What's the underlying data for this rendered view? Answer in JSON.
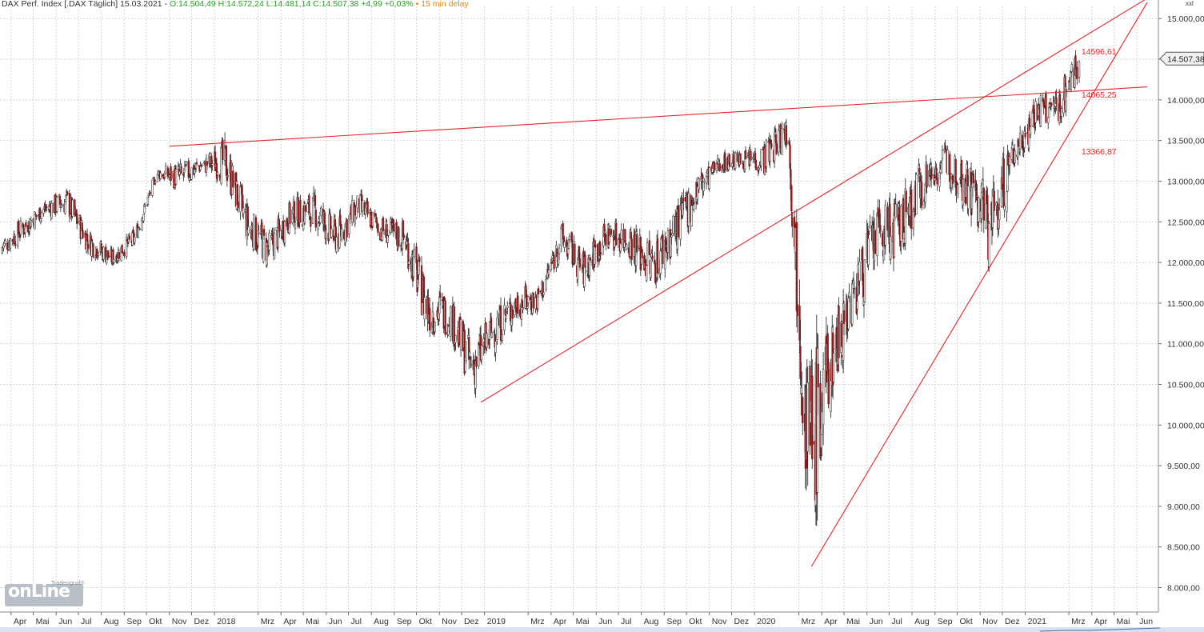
{
  "header": {
    "main": "DAX Perf. Index [.DAX Täglich] 15.03.2021 -",
    "ohlc": "O:14.504,49 H:14.572,24 L:14.481,14 C:14.507,38 +4,99 +0,03%",
    "delay": "• 15 min delay"
  },
  "logo": {
    "word": "onLine",
    "small": "Tradesignal®"
  },
  "colors": {
    "up_candle": "#ffffff",
    "down_candle": "#8b1a1a",
    "wick": "#222222",
    "trendline": "#e8262a",
    "grid": "#d4d4d4",
    "axis_text": "#333333",
    "annotation": "#e8262a",
    "last_price_box": "#f2f2f2"
  },
  "chart_data": {
    "type": "candlestick",
    "title": "DAX Perf. Index [.DAX Täglich]",
    "x": [
      "2017-03",
      "2017-04",
      "2017-05",
      "2017-06",
      "2017-07",
      "2017-08",
      "2017-09",
      "2017-10",
      "2017-11",
      "2017-12",
      "2018-01",
      "2018-02",
      "2018-03",
      "2018-04",
      "2018-05",
      "2018-06",
      "2018-07",
      "2018-08",
      "2018-09",
      "2018-10",
      "2018-11",
      "2018-12",
      "2019-01",
      "2019-02",
      "2019-03",
      "2019-04",
      "2019-05",
      "2019-06",
      "2019-07",
      "2019-08",
      "2019-09",
      "2019-10",
      "2019-11",
      "2019-12",
      "2020-01",
      "2020-02",
      "2020-03",
      "2020-04",
      "2020-05",
      "2020-06",
      "2020-07",
      "2020-08",
      "2020-09",
      "2020-10",
      "2020-11",
      "2020-12",
      "2021-01",
      "2021-02",
      "2021-03"
    ],
    "close": [
      12150,
      12400,
      12650,
      12750,
      12250,
      12050,
      12300,
      13100,
      13050,
      13200,
      13250,
      12450,
      12150,
      12600,
      12650,
      12300,
      12700,
      12400,
      12300,
      11450,
      11350,
      10700,
      11200,
      11500,
      11550,
      12300,
      11900,
      12350,
      12300,
      11950,
      12400,
      12900,
      13250,
      13250,
      13300,
      13650,
      9600,
      10850,
      11700,
      12350,
      12400,
      13000,
      13250,
      13000,
      12450,
      13300,
      13850,
      13900,
      14507.38
    ],
    "range_high": [
      12300,
      12600,
      12850,
      12950,
      12650,
      12250,
      12600,
      13200,
      13500,
      13200,
      13600,
      13200,
      12600,
      12750,
      13150,
      12950,
      12900,
      12750,
      12500,
      12450,
      11700,
      11400,
      11350,
      11650,
      11800,
      12500,
      12400,
      12450,
      12650,
      12400,
      12600,
      13000,
      13300,
      13400,
      13650,
      13800,
      12500,
      11200,
      11800,
      12900,
      13300,
      13300,
      13450,
      13200,
      13200,
      13800,
      14150,
      14200,
      14596.61
    ],
    "range_low": [
      11850,
      12100,
      12450,
      12350,
      12100,
      11850,
      12200,
      12950,
      12850,
      12800,
      12700,
      12300,
      11850,
      12100,
      12400,
      12150,
      12300,
      12200,
      11750,
      11200,
      10850,
      10280,
      10400,
      10900,
      11200,
      11850,
      11650,
      11800,
      11850,
      11350,
      11600,
      12000,
      12800,
      13050,
      12900,
      13100,
      8260,
      9700,
      10200,
      11700,
      11900,
      12300,
      12700,
      12000,
      11450,
      12900,
      13300,
      13350,
      13900
    ],
    "ylim": [
      7700,
      15150
    ],
    "y_ticks": [
      "15.000,00",
      "14.500,00",
      "14.000,00",
      "13.500,00",
      "13.000,00",
      "12.500,00",
      "12.000,00",
      "11.500,00",
      "11.000,00",
      "10.500,00",
      "10.000,00",
      "9.500,00",
      "9.000,00",
      "8.500,00",
      "8.000,00"
    ],
    "y_tick_values": [
      15000,
      14500,
      14000,
      13500,
      13000,
      12500,
      12000,
      11500,
      11000,
      10500,
      10000,
      9500,
      9000,
      8500,
      8000
    ],
    "x_ticks": [
      {
        "label": "Apr",
        "date": "2017-04-01"
      },
      {
        "label": "Mai",
        "date": "2017-05-01"
      },
      {
        "label": "Jun",
        "date": "2017-06-01"
      },
      {
        "label": "Jul",
        "date": "2017-07-01"
      },
      {
        "label": "Aug",
        "date": "2017-08-01"
      },
      {
        "label": "Sep",
        "date": "2017-09-01"
      },
      {
        "label": "Okt",
        "date": "2017-10-01"
      },
      {
        "label": "Nov",
        "date": "2017-11-01"
      },
      {
        "label": "Dez",
        "date": "2017-12-01"
      },
      {
        "label": "2018",
        "date": "2018-01-01"
      },
      {
        "label": "Mrz",
        "date": "2018-03-01"
      },
      {
        "label": "Apr",
        "date": "2018-04-01"
      },
      {
        "label": "Mai",
        "date": "2018-05-01"
      },
      {
        "label": "Jun",
        "date": "2018-06-01"
      },
      {
        "label": "Jul",
        "date": "2018-07-01"
      },
      {
        "label": "Aug",
        "date": "2018-08-01"
      },
      {
        "label": "Sep",
        "date": "2018-09-01"
      },
      {
        "label": "Okt",
        "date": "2018-10-01"
      },
      {
        "label": "Nov",
        "date": "2018-11-01"
      },
      {
        "label": "Dez",
        "date": "2018-12-01"
      },
      {
        "label": "2019",
        "date": "2019-01-01"
      },
      {
        "label": "Mrz",
        "date": "2019-03-01"
      },
      {
        "label": "Apr",
        "date": "2019-04-01"
      },
      {
        "label": "Mai",
        "date": "2019-05-01"
      },
      {
        "label": "Jun",
        "date": "2019-06-01"
      },
      {
        "label": "Jul",
        "date": "2019-07-01"
      },
      {
        "label": "Aug",
        "date": "2019-08-01"
      },
      {
        "label": "Sep",
        "date": "2019-09-01"
      },
      {
        "label": "Okt",
        "date": "2019-10-01"
      },
      {
        "label": "Nov",
        "date": "2019-11-01"
      },
      {
        "label": "Dez",
        "date": "2019-12-01"
      },
      {
        "label": "2020",
        "date": "2020-01-01"
      },
      {
        "label": "Mrz",
        "date": "2020-03-01"
      },
      {
        "label": "Apr",
        "date": "2020-04-01"
      },
      {
        "label": "Mai",
        "date": "2020-05-01"
      },
      {
        "label": "Jun",
        "date": "2020-06-01"
      },
      {
        "label": "Jul",
        "date": "2020-07-01"
      },
      {
        "label": "Aug",
        "date": "2020-08-01"
      },
      {
        "label": "Sep",
        "date": "2020-09-01"
      },
      {
        "label": "Okt",
        "date": "2020-10-01"
      },
      {
        "label": "Nov",
        "date": "2020-11-01"
      },
      {
        "label": "Dez",
        "date": "2020-12-01"
      },
      {
        "label": "2021",
        "date": "2021-01-01"
      },
      {
        "label": "Mrz",
        "date": "2021-03-01"
      },
      {
        "label": "Apr",
        "date": "2021-04-01"
      },
      {
        "label": "Mai",
        "date": "2021-05-01"
      },
      {
        "label": "Jun",
        "date": "2021-06-01"
      }
    ],
    "trendlines": [
      {
        "from": {
          "date": "2017-11-01",
          "value": 13430
        },
        "to": {
          "date": "2021-06-15",
          "value": 14160
        }
      },
      {
        "from": {
          "date": "2018-12-27",
          "value": 10280
        },
        "to": {
          "date": "2021-06-15",
          "value": 15250
        }
      },
      {
        "from": {
          "date": "2020-03-18",
          "value": 8260
        },
        "to": {
          "date": "2021-06-15",
          "value": 15200
        }
      }
    ],
    "annotations": [
      {
        "label": "14596,61",
        "value": 14596.61
      },
      {
        "label": "14065,25",
        "value": 14065.25
      },
      {
        "label": "13366,87",
        "value": 13366.87
      }
    ],
    "last_price": {
      "label": "14.507,38",
      "value": 14507.38
    },
    "axis_unit": "xxl",
    "grid": true
  }
}
